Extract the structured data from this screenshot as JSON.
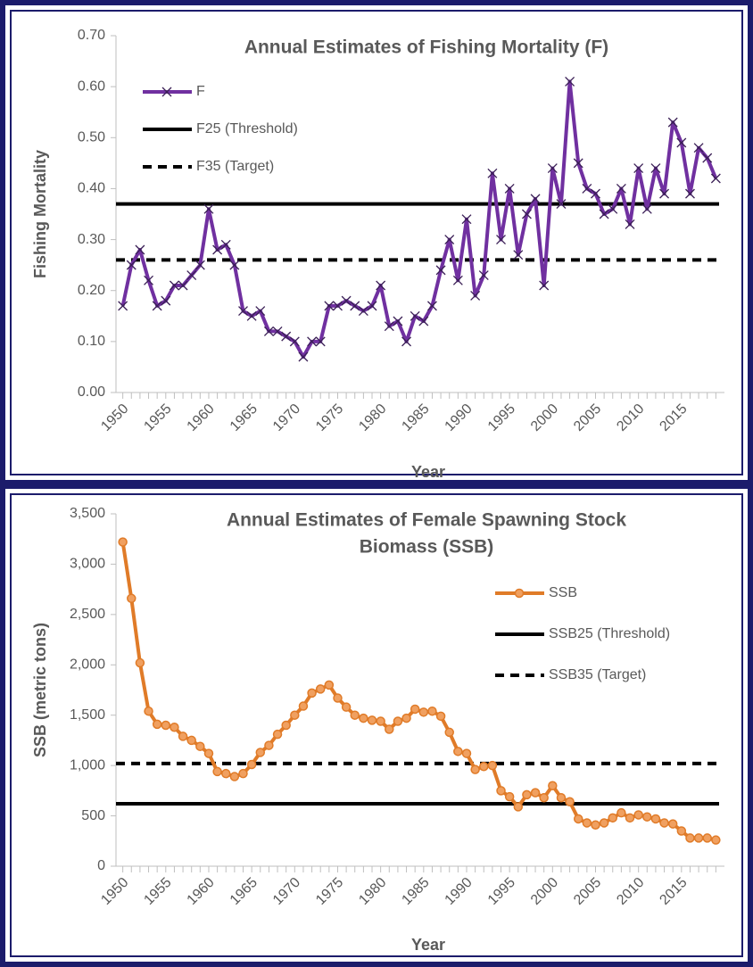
{
  "chart_data": [
    {
      "type": "line",
      "title": [
        "Annual Estimates of Fishing Mortality (F)"
      ],
      "x_label": "Year",
      "y_label": "Fishing Mortality",
      "legend": "upper left",
      "x": [
        1950,
        1951,
        1952,
        1953,
        1954,
        1955,
        1956,
        1957,
        1958,
        1959,
        1960,
        1961,
        1962,
        1963,
        1964,
        1965,
        1966,
        1967,
        1968,
        1969,
        1970,
        1971,
        1972,
        1973,
        1974,
        1975,
        1976,
        1977,
        1978,
        1979,
        1980,
        1981,
        1982,
        1983,
        1984,
        1985,
        1986,
        1987,
        1988,
        1989,
        1990,
        1991,
        1992,
        1993,
        1994,
        1995,
        1996,
        1997,
        1998,
        1999,
        2000,
        2001,
        2002,
        2003,
        2004,
        2005,
        2006,
        2007,
        2008,
        2009,
        2010,
        2011,
        2012,
        2013,
        2014,
        2015,
        2016,
        2017,
        2018,
        2019
      ],
      "xlim": [
        1949,
        2020
      ],
      "xticks": [
        1950,
        1955,
        1960,
        1965,
        1970,
        1975,
        1980,
        1985,
        1990,
        1995,
        2000,
        2005,
        2010,
        2015
      ],
      "ylim": [
        0,
        0.7
      ],
      "yticks": [
        {
          "value": 0,
          "label": "0.00"
        },
        {
          "value": 0.1,
          "label": "0.10"
        },
        {
          "value": 0.2,
          "label": "0.20"
        },
        {
          "value": 0.3,
          "label": "0.30"
        },
        {
          "value": 0.4,
          "label": "0.40"
        },
        {
          "value": 0.5,
          "label": "0.50"
        },
        {
          "value": 0.6,
          "label": "0.60"
        },
        {
          "value": 0.7,
          "label": "0.70"
        }
      ],
      "series": [
        {
          "name": "F",
          "color": "#7030a0",
          "marker": "x",
          "values": [
            0.17,
            0.25,
            0.28,
            0.22,
            0.17,
            0.18,
            0.21,
            0.21,
            0.23,
            0.25,
            0.36,
            0.28,
            0.29,
            0.25,
            0.16,
            0.15,
            0.16,
            0.12,
            0.12,
            0.11,
            0.1,
            0.07,
            0.1,
            0.1,
            0.17,
            0.17,
            0.18,
            0.17,
            0.16,
            0.17,
            0.21,
            0.13,
            0.14,
            0.1,
            0.15,
            0.14,
            0.17,
            0.24,
            0.3,
            0.22,
            0.34,
            0.19,
            0.23,
            0.43,
            0.3,
            0.4,
            0.27,
            0.35,
            0.38,
            0.21,
            0.44,
            0.37,
            0.61,
            0.45,
            0.4,
            0.39,
            0.35,
            0.36,
            0.4,
            0.33,
            0.44,
            0.36,
            0.44,
            0.39,
            0.53,
            0.49,
            0.39,
            0.48,
            0.46,
            0.42
          ]
        }
      ],
      "reference_lines": [
        {
          "name": "F25 (Threshold)",
          "value": 0.37,
          "color": "#000000",
          "style": "solid"
        },
        {
          "name": "F35 (Target)",
          "value": 0.26,
          "color": "#000000",
          "style": "dashed"
        }
      ]
    },
    {
      "type": "line",
      "title": [
        "Annual Estimates of Female Spawning Stock",
        "Biomass (SSB)"
      ],
      "x_label": "Year",
      "y_label": "SSB (metric tons)",
      "legend": "upper right",
      "x": [
        1950,
        1951,
        1952,
        1953,
        1954,
        1955,
        1956,
        1957,
        1958,
        1959,
        1960,
        1961,
        1962,
        1963,
        1964,
        1965,
        1966,
        1967,
        1968,
        1969,
        1970,
        1971,
        1972,
        1973,
        1974,
        1975,
        1976,
        1977,
        1978,
        1979,
        1980,
        1981,
        1982,
        1983,
        1984,
        1985,
        1986,
        1987,
        1988,
        1989,
        1990,
        1991,
        1992,
        1993,
        1994,
        1995,
        1996,
        1997,
        1998,
        1999,
        2000,
        2001,
        2002,
        2003,
        2004,
        2005,
        2006,
        2007,
        2008,
        2009,
        2010,
        2011,
        2012,
        2013,
        2014,
        2015,
        2016,
        2017,
        2018,
        2019
      ],
      "xlim": [
        1949,
        2020
      ],
      "xticks": [
        1950,
        1955,
        1960,
        1965,
        1970,
        1975,
        1980,
        1985,
        1990,
        1995,
        2000,
        2005,
        2010,
        2015
      ],
      "ylim": [
        0,
        3500
      ],
      "yticks": [
        0,
        500,
        {
          "value": 1000,
          "label": "1,000"
        },
        {
          "value": 1500,
          "label": "1,500"
        },
        {
          "value": 2000,
          "label": "2,000"
        },
        {
          "value": 2500,
          "label": "2,500"
        },
        {
          "value": 3000,
          "label": "3,000"
        },
        {
          "value": 3500,
          "label": "3,500"
        }
      ],
      "series": [
        {
          "name": "SSB",
          "color": "#e07b28",
          "marker": "o",
          "values": [
            3220,
            2660,
            2020,
            1540,
            1410,
            1400,
            1380,
            1290,
            1250,
            1190,
            1120,
            940,
            920,
            890,
            920,
            1010,
            1130,
            1200,
            1310,
            1400,
            1500,
            1590,
            1720,
            1760,
            1800,
            1670,
            1580,
            1500,
            1470,
            1450,
            1440,
            1360,
            1440,
            1470,
            1560,
            1530,
            1540,
            1490,
            1330,
            1140,
            1120,
            960,
            990,
            1000,
            750,
            690,
            590,
            710,
            730,
            680,
            800,
            680,
            640,
            470,
            430,
            410,
            430,
            480,
            530,
            480,
            510,
            490,
            470,
            430,
            420,
            350,
            280,
            280,
            280,
            260
          ]
        }
      ],
      "reference_lines": [
        {
          "name": "SSB25 (Threshold)",
          "value": 620,
          "color": "#000000",
          "style": "solid"
        },
        {
          "name": "SSB35 (Target)",
          "value": 1020,
          "color": "#000000",
          "style": "dashed"
        }
      ]
    }
  ]
}
